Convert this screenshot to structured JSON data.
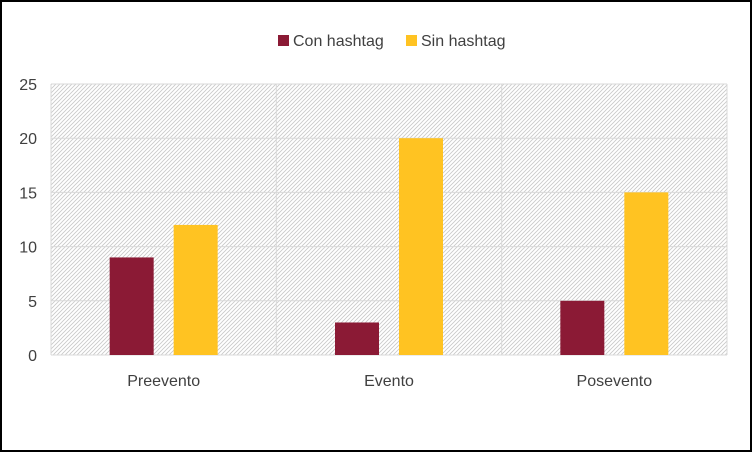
{
  "chart_data": {
    "type": "bar",
    "categories": [
      "Preevento",
      "Evento",
      "Posevento"
    ],
    "series": [
      {
        "name": "Con hashtag",
        "values": [
          9,
          3,
          5
        ],
        "color": "#8B1A35"
      },
      {
        "name": "Sin hashtag",
        "values": [
          12,
          20,
          15
        ],
        "color": "#FFC322"
      }
    ],
    "title": "",
    "xlabel": "",
    "ylabel": "",
    "ylim": [
      0,
      25
    ],
    "yticks": [
      0,
      5,
      10,
      15,
      20,
      25
    ],
    "grid": true,
    "legend_position": "top-center",
    "plot_background": "hatched light gray",
    "colors": {
      "text": "#404040",
      "gridline": "#D9D9D9",
      "border": "#000000"
    }
  }
}
